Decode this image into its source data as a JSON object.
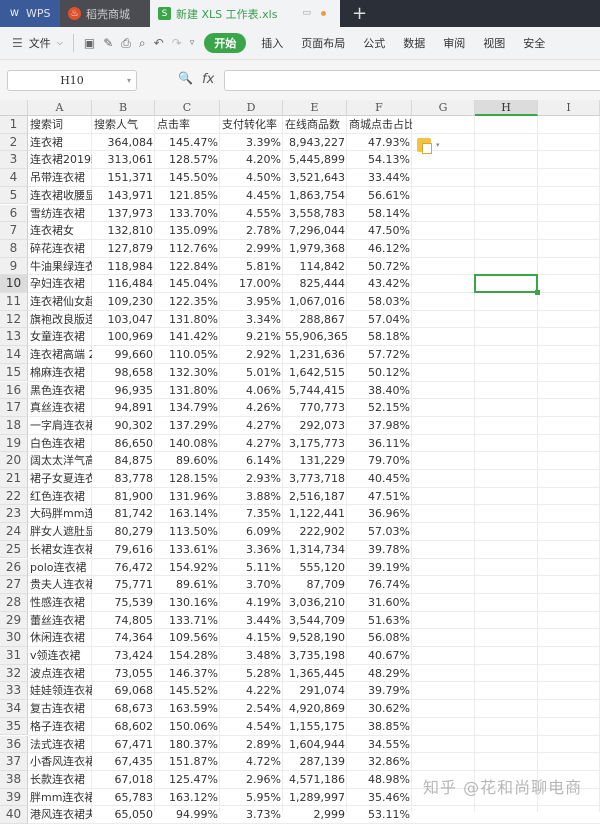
{
  "tabs": [
    {
      "label": "WPS",
      "icon": "wps-logo-icon"
    },
    {
      "label": "稻壳商城",
      "icon": "docer-flame-icon"
    },
    {
      "label": "新建 XLS 工作表.xls",
      "icon": "spreadsheet-icon",
      "active": true
    }
  ],
  "toolbar": {
    "file_menu": "文件",
    "start": "开始",
    "menus": [
      "插入",
      "页面布局",
      "公式",
      "数据",
      "审阅",
      "视图",
      "安全"
    ]
  },
  "formula_bar": {
    "name_box": "H10",
    "fx": "fx",
    "value": ""
  },
  "columns": [
    "A",
    "B",
    "C",
    "D",
    "E",
    "F",
    "G",
    "H",
    "I"
  ],
  "selected_cell": {
    "column": "H",
    "row": 10
  },
  "accent_color": "#3aa54a",
  "rows": [
    [
      "搜索词",
      "搜索人气",
      "点击率",
      "支付转化率",
      "在线商品数",
      "商城点击占比"
    ],
    [
      "连衣裙",
      "364,084",
      "145.47%",
      "3.39%",
      "8,943,227",
      "47.93%"
    ],
    [
      "连衣裙2019新",
      "313,061",
      "128.57%",
      "4.20%",
      "5,445,899",
      "54.13%"
    ],
    [
      "吊带连衣裙",
      "151,371",
      "145.50%",
      "4.50%",
      "3,521,643",
      "33.44%"
    ],
    [
      "连衣裙收腰显",
      "143,971",
      "121.85%",
      "4.45%",
      "1,863,754",
      "56.61%"
    ],
    [
      "雪纺连衣裙",
      "137,973",
      "133.70%",
      "4.55%",
      "3,558,783",
      "58.14%"
    ],
    [
      "连衣裙女",
      "132,810",
      "135.09%",
      "2.78%",
      "7,296,044",
      "47.50%"
    ],
    [
      "碎花连衣裙",
      "127,879",
      "112.76%",
      "2.99%",
      "1,979,368",
      "46.12%"
    ],
    [
      "牛油果绿连衣",
      "118,984",
      "122.84%",
      "5.81%",
      "114,842",
      "50.72%"
    ],
    [
      "孕妇连衣裙",
      "116,484",
      "145.04%",
      "17.00%",
      "825,444",
      "43.42%"
    ],
    [
      "连衣裙仙女超",
      "109,230",
      "122.35%",
      "3.95%",
      "1,067,016",
      "58.03%"
    ],
    [
      "旗袍改良版连",
      "103,047",
      "131.80%",
      "3.34%",
      "288,867",
      "57.04%"
    ],
    [
      "女童连衣裙",
      "100,969",
      "141.42%",
      "9.21%",
      "55,906,365",
      "58.18%"
    ],
    [
      "连衣裙高端 2",
      "99,660",
      "110.05%",
      "2.92%",
      "1,231,636",
      "57.72%"
    ],
    [
      "棉麻连衣裙",
      "98,658",
      "132.30%",
      "5.01%",
      "1,642,515",
      "50.12%"
    ],
    [
      "黑色连衣裙",
      "96,935",
      "131.80%",
      "4.06%",
      "5,744,415",
      "38.40%"
    ],
    [
      "真丝连衣裙",
      "94,891",
      "134.79%",
      "4.26%",
      "770,773",
      "52.15%"
    ],
    [
      "一字肩连衣裙",
      "90,302",
      "137.29%",
      "4.27%",
      "292,073",
      "37.98%"
    ],
    [
      "白色连衣裙",
      "86,650",
      "140.08%",
      "4.27%",
      "3,175,773",
      "36.11%"
    ],
    [
      "阔太太洋气高",
      "84,875",
      "89.60%",
      "6.14%",
      "131,229",
      "79.70%"
    ],
    [
      "裙子女夏连衣",
      "83,778",
      "128.15%",
      "2.93%",
      "3,773,718",
      "40.45%"
    ],
    [
      "红色连衣裙",
      "81,900",
      "131.96%",
      "3.88%",
      "2,516,187",
      "47.51%"
    ],
    [
      "大码胖mm连",
      "81,742",
      "163.14%",
      "7.35%",
      "1,122,441",
      "36.96%"
    ],
    [
      "胖女人遮肚显",
      "80,279",
      "113.50%",
      "6.09%",
      "222,902",
      "57.03%"
    ],
    [
      "长裙女连衣裙",
      "79,616",
      "133.61%",
      "3.36%",
      "1,314,734",
      "39.78%"
    ],
    [
      "polo连衣裙",
      "76,472",
      "154.92%",
      "5.11%",
      "555,120",
      "39.19%"
    ],
    [
      "贵夫人连衣裙",
      "75,771",
      "89.61%",
      "3.70%",
      "87,709",
      "76.74%"
    ],
    [
      "性感连衣裙",
      "75,539",
      "130.16%",
      "4.19%",
      "3,036,210",
      "31.60%"
    ],
    [
      "蕾丝连衣裙",
      "74,805",
      "133.71%",
      "3.44%",
      "3,544,709",
      "51.63%"
    ],
    [
      "休闲连衣裙",
      "74,364",
      "109.56%",
      "4.15%",
      "9,528,190",
      "56.08%"
    ],
    [
      "v领连衣裙",
      "73,424",
      "154.28%",
      "3.48%",
      "3,735,198",
      "40.67%"
    ],
    [
      "波点连衣裙",
      "73,055",
      "146.37%",
      "5.28%",
      "1,365,445",
      "48.29%"
    ],
    [
      "娃娃领连衣裙",
      "69,068",
      "145.52%",
      "4.22%",
      "291,074",
      "39.79%"
    ],
    [
      "复古连衣裙",
      "68,673",
      "163.59%",
      "2.54%",
      "4,920,869",
      "30.62%"
    ],
    [
      "格子连衣裙",
      "68,602",
      "150.06%",
      "4.54%",
      "1,155,175",
      "38.85%"
    ],
    [
      "法式连衣裙",
      "67,471",
      "180.37%",
      "2.89%",
      "1,604,944",
      "34.55%"
    ],
    [
      "小香风连衣裙",
      "67,435",
      "151.87%",
      "4.72%",
      "287,139",
      "32.86%"
    ],
    [
      "长款连衣裙",
      "67,018",
      "125.47%",
      "2.96%",
      "4,571,186",
      "48.98%"
    ],
    [
      "胖mm连衣裙",
      "65,783",
      "163.12%",
      "5.95%",
      "1,289,997",
      "35.46%"
    ],
    [
      "港风连衣裙夫",
      "65,050",
      "94.99%",
      "3.73%",
      "2,999",
      "53.11%"
    ]
  ],
  "watermark": "知乎 @花和尚聊电商"
}
